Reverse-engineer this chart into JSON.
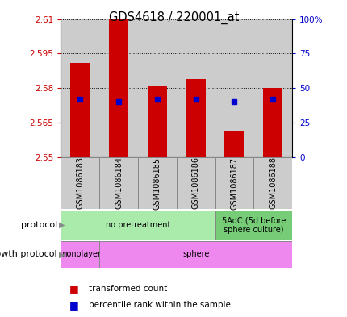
{
  "title": "GDS4618 / 220001_at",
  "samples": [
    "GSM1086183",
    "GSM1086184",
    "GSM1086185",
    "GSM1086186",
    "GSM1086187",
    "GSM1086188"
  ],
  "bar_values": [
    2.591,
    2.61,
    2.581,
    2.584,
    2.561,
    2.58
  ],
  "bar_base": 2.55,
  "percentile_values": [
    2.575,
    2.574,
    2.575,
    2.575,
    2.574,
    2.575
  ],
  "ylim": [
    2.55,
    2.61
  ],
  "yticks": [
    2.55,
    2.565,
    2.58,
    2.595,
    2.61
  ],
  "ytick_labels": [
    "2.55",
    "2.565",
    "2.58",
    "2.595",
    "2.61"
  ],
  "y2lim": [
    0,
    100
  ],
  "y2ticks": [
    0,
    25,
    50,
    75,
    100
  ],
  "y2ticklabels": [
    "0",
    "25",
    "50",
    "75",
    "100%"
  ],
  "bar_color": "#cc0000",
  "percentile_color": "#0000cc",
  "protocol_groups": [
    {
      "label": "no pretreatment",
      "start": 0,
      "end": 4,
      "color": "#aaeaaa"
    },
    {
      "label": "5AdC (5d before\nsphere culture)",
      "start": 4,
      "end": 6,
      "color": "#77cc77"
    }
  ],
  "growth_boundaries": [
    {
      "label": "monolayer",
      "start": 0,
      "end": 1,
      "color": "#ee88ee"
    },
    {
      "label": "sphere",
      "start": 1,
      "end": 6,
      "color": "#ee88ee"
    }
  ],
  "protocol_label": "protocol",
  "growth_label": "growth protocol",
  "legend_items": [
    {
      "label": "transformed count",
      "color": "#cc0000"
    },
    {
      "label": "percentile rank within the sample",
      "color": "#0000cc"
    }
  ],
  "sample_bg_color": "#cccccc",
  "bar_width": 0.5
}
